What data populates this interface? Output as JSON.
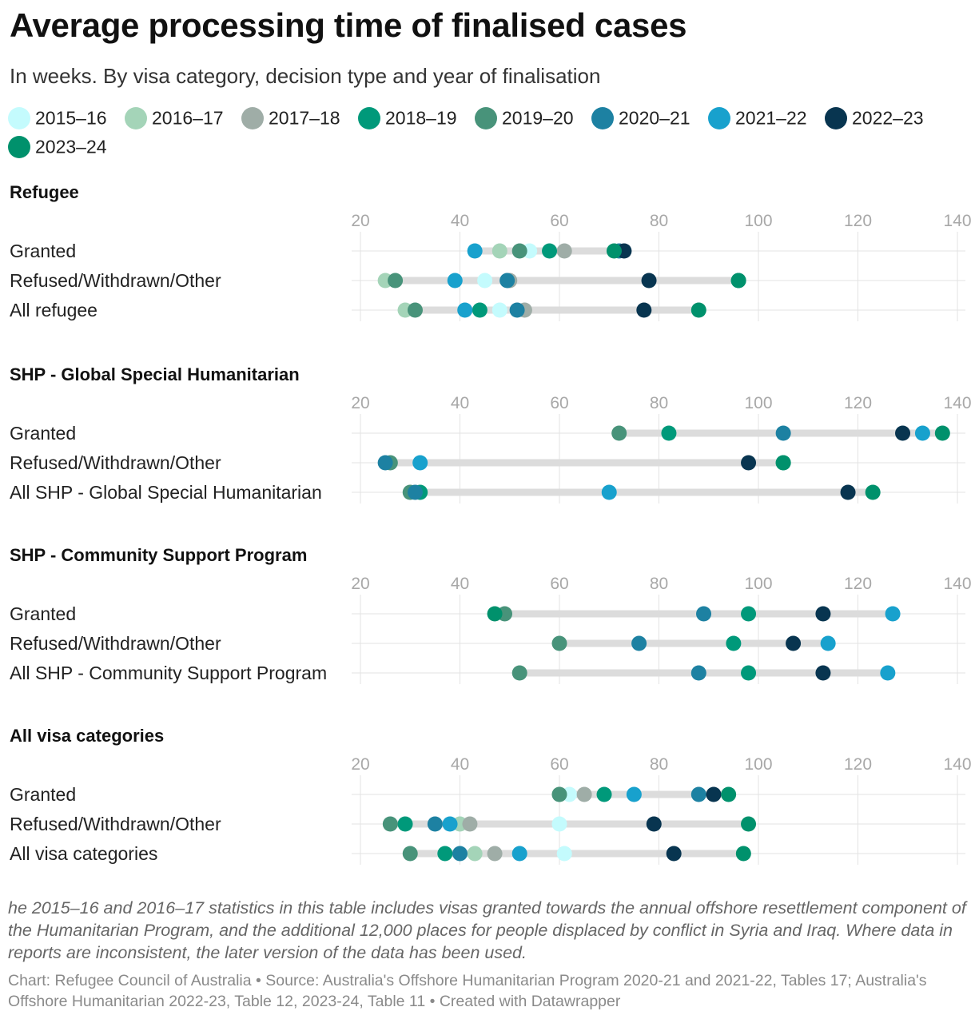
{
  "title": "Average processing time of finalised cases",
  "subtitle": "In weeks. By visa category, decision type and year of finalisation",
  "legend": [
    {
      "label": "2015–16",
      "color": "#c4fbfd"
    },
    {
      "label": "2016–17",
      "color": "#a4d4b8"
    },
    {
      "label": "2017–18",
      "color": "#9fada7"
    },
    {
      "label": "2018–19",
      "color": "#00997a"
    },
    {
      "label": "2019–20",
      "color": "#48937a"
    },
    {
      "label": "2020–21",
      "color": "#1d81a2"
    },
    {
      "label": "2021–22",
      "color": "#18a1cd"
    },
    {
      "label": "2022–23",
      "color": "#083550"
    },
    {
      "label": "2023–24",
      "color": "#00916c"
    }
  ],
  "chart_data": {
    "type": "scatter",
    "subtype": "range-dot-plot",
    "x_ticks": [
      20,
      40,
      60,
      80,
      100,
      120,
      140
    ],
    "x_range": [
      20,
      140
    ],
    "series_order": [
      "2015–16",
      "2016–17",
      "2017–18",
      "2018–19",
      "2019–20",
      "2020–21",
      "2021–22",
      "2022–23",
      "2023–24"
    ],
    "panels": [
      {
        "title": "Refugee",
        "rows": [
          {
            "label": "Granted",
            "values": [
              54,
              48,
              61,
              58,
              52,
              72,
              43,
              73,
              71
            ]
          },
          {
            "label": "Refused/Withdrawn/Other",
            "values": [
              45,
              25,
              50,
              96,
              27,
              49.5,
              39,
              78,
              96
            ]
          },
          {
            "label": "All refugee",
            "values": [
              48,
              29,
              53,
              44,
              31,
              51.5,
              41,
              77,
              88
            ]
          }
        ]
      },
      {
        "title": "SHP - Global Special Humanitarian",
        "rows": [
          {
            "label": "Granted",
            "values": [
              null,
              null,
              null,
              82,
              72,
              105,
              133,
              129,
              137
            ]
          },
          {
            "label": "Refused/Withdrawn/Other",
            "values": [
              null,
              null,
              null,
              105,
              26,
              25,
              32,
              98,
              105
            ]
          },
          {
            "label": "All SHP - Global Special Humanitarian",
            "values": [
              null,
              null,
              null,
              32,
              30,
              31,
              70,
              118,
              123
            ]
          }
        ]
      },
      {
        "title": "SHP - Community Support Program",
        "rows": [
          {
            "label": "Granted",
            "values": [
              null,
              null,
              null,
              98,
              49,
              89,
              127,
              113,
              47
            ]
          },
          {
            "label": "Refused/Withdrawn/Other",
            "values": [
              null,
              null,
              null,
              95,
              60,
              76,
              114,
              107,
              null
            ]
          },
          {
            "label": "All SHP - Community Support Program",
            "values": [
              null,
              null,
              null,
              98,
              52,
              88,
              126,
              113,
              null
            ]
          }
        ]
      },
      {
        "title": "All visa categories",
        "rows": [
          {
            "label": "Granted",
            "values": [
              62,
              60,
              65,
              69,
              60,
              88,
              75,
              91,
              94
            ]
          },
          {
            "label": "Refused/Withdrawn/Other",
            "values": [
              60,
              40,
              42,
              29,
              26,
              35,
              38,
              79,
              98
            ]
          },
          {
            "label": "All visa categories",
            "values": [
              61,
              43,
              47,
              37,
              30,
              40,
              52,
              83,
              97
            ]
          }
        ]
      }
    ]
  },
  "footnote": "he 2015–16 and 2016–17 statistics in this table includes visas granted towards the annual offshore resettlement component of the Humanitarian Program, and the additional 12,000 places for people displaced by conflict in Syria and Iraq. Where data in reports are inconsistent, the later version of the data has been used.",
  "credit": "Chart: Refugee Council of Australia • Source: Australia's Offshore Humanitarian Program 2020-21 and 2021-22, Tables 17; Australia's Offshore Humanitarian 2022-23, Table 12, 2023-24, Table 11 • Created with Datawrapper"
}
